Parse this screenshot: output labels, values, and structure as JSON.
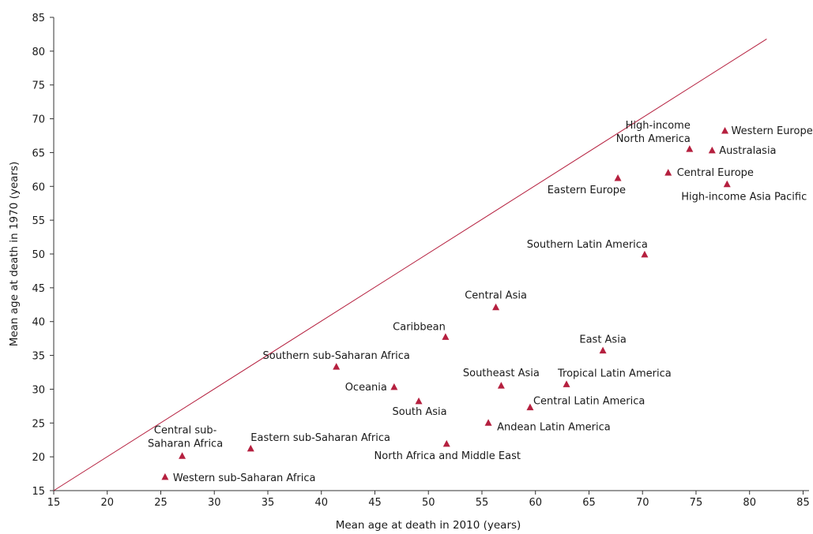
{
  "chart_data": {
    "type": "scatter",
    "title": "",
    "xlabel": "Mean age at death in 2010 (years)",
    "ylabel": "Mean age at death in 1970 (years)",
    "xlim": [
      15,
      86
    ],
    "ylim": [
      15,
      85
    ],
    "xticks": [
      15,
      20,
      25,
      30,
      35,
      40,
      45,
      50,
      55,
      60,
      65,
      70,
      75,
      80,
      85
    ],
    "yticks": [
      15,
      20,
      25,
      30,
      35,
      40,
      45,
      50,
      55,
      60,
      65,
      70,
      75,
      80,
      85
    ],
    "grid": false,
    "marker_color": "#b5203f",
    "reference_line": {
      "color": "#b5203f",
      "from": [
        15,
        15
      ],
      "to": [
        81.6,
        81.8
      ]
    },
    "points": [
      {
        "label": "Western Europe",
        "x": 77.7,
        "y": 68.2
      },
      {
        "label": "High-income North America",
        "x": 74.4,
        "y": 65.5
      },
      {
        "label": "Australasia",
        "x": 76.5,
        "y": 65.3
      },
      {
        "label": "Central Europe",
        "x": 72.4,
        "y": 62.0
      },
      {
        "label": "Eastern Europe",
        "x": 67.7,
        "y": 61.2
      },
      {
        "label": "High-income Asia Pacific",
        "x": 77.9,
        "y": 60.3
      },
      {
        "label": "Southern Latin America",
        "x": 70.2,
        "y": 49.9
      },
      {
        "label": "Central Asia",
        "x": 56.3,
        "y": 42.1
      },
      {
        "label": "Caribbean",
        "x": 51.6,
        "y": 37.7
      },
      {
        "label": "East Asia",
        "x": 66.3,
        "y": 35.7
      },
      {
        "label": "Southern sub-Saharan Africa",
        "x": 41.4,
        "y": 33.3
      },
      {
        "label": "Tropical Latin America",
        "x": 62.9,
        "y": 30.7
      },
      {
        "label": "Southeast Asia",
        "x": 56.8,
        "y": 30.5
      },
      {
        "label": "Oceania",
        "x": 46.8,
        "y": 30.3
      },
      {
        "label": "South Asia",
        "x": 49.1,
        "y": 28.2
      },
      {
        "label": "Central Latin America",
        "x": 59.5,
        "y": 27.3
      },
      {
        "label": "Andean Latin America",
        "x": 55.6,
        "y": 25.0
      },
      {
        "label": "North Africa and Middle East",
        "x": 51.7,
        "y": 21.9
      },
      {
        "label": "Eastern sub-Saharan Africa",
        "x": 33.4,
        "y": 21.2
      },
      {
        "label": "Central sub-Saharan Africa",
        "x": 27.0,
        "y": 20.1
      },
      {
        "label": "Western sub-Saharan Africa",
        "x": 25.4,
        "y": 17.0
      }
    ]
  }
}
